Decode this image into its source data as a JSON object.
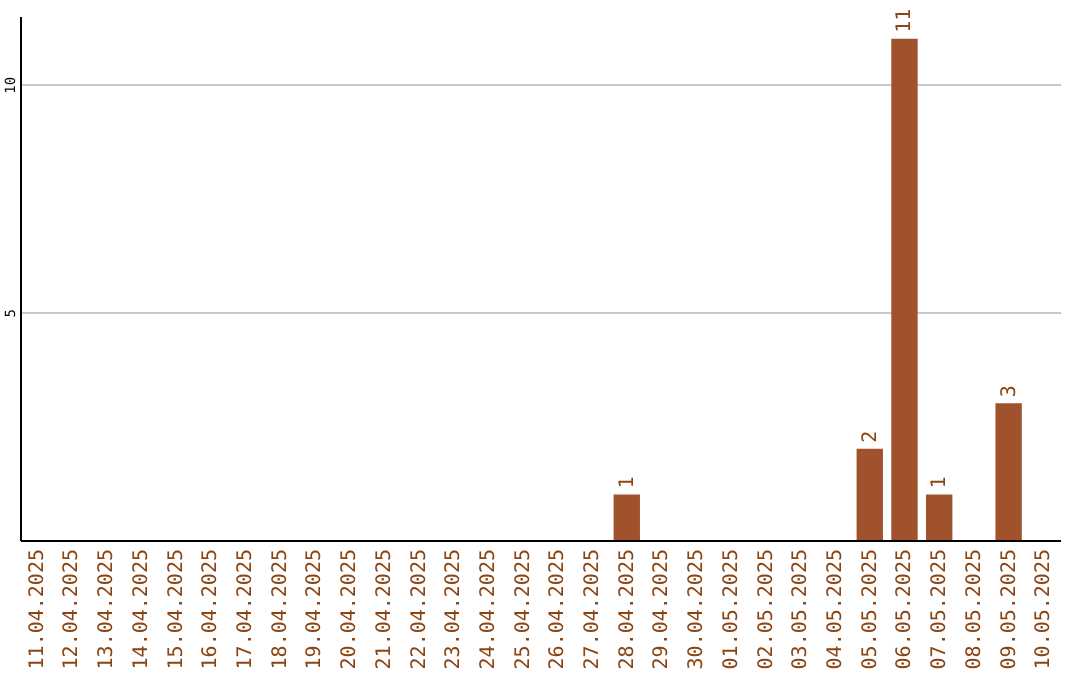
{
  "chart_data": {
    "type": "bar",
    "categories": [
      "11.04.2025",
      "12.04.2025",
      "13.04.2025",
      "14.04.2025",
      "15.04.2025",
      "16.04.2025",
      "17.04.2025",
      "18.04.2025",
      "19.04.2025",
      "20.04.2025",
      "21.04.2025",
      "22.04.2025",
      "23.04.2025",
      "24.04.2025",
      "25.04.2025",
      "26.04.2025",
      "27.04.2025",
      "28.04.2025",
      "29.04.2025",
      "30.04.2025",
      "01.05.2025",
      "02.05.2025",
      "03.05.2025",
      "04.05.2025",
      "05.05.2025",
      "06.05.2025",
      "07.05.2025",
      "08.05.2025",
      "09.05.2025",
      "10.05.2025"
    ],
    "values": [
      0,
      0,
      0,
      0,
      0,
      0,
      0,
      0,
      0,
      0,
      0,
      0,
      0,
      0,
      0,
      0,
      0,
      1,
      0,
      0,
      0,
      0,
      0,
      0,
      2,
      11,
      1,
      0,
      3,
      0
    ],
    "color": "#a0522d",
    "value_labels": [
      null,
      null,
      null,
      null,
      null,
      null,
      null,
      null,
      null,
      null,
      null,
      null,
      null,
      null,
      null,
      null,
      null,
      "1",
      null,
      null,
      null,
      null,
      null,
      null,
      "2",
      "11",
      "1",
      null,
      "3",
      null
    ],
    "ylim": [
      0,
      11.5
    ],
    "yticks": [
      5,
      10
    ],
    "grid": "y"
  }
}
